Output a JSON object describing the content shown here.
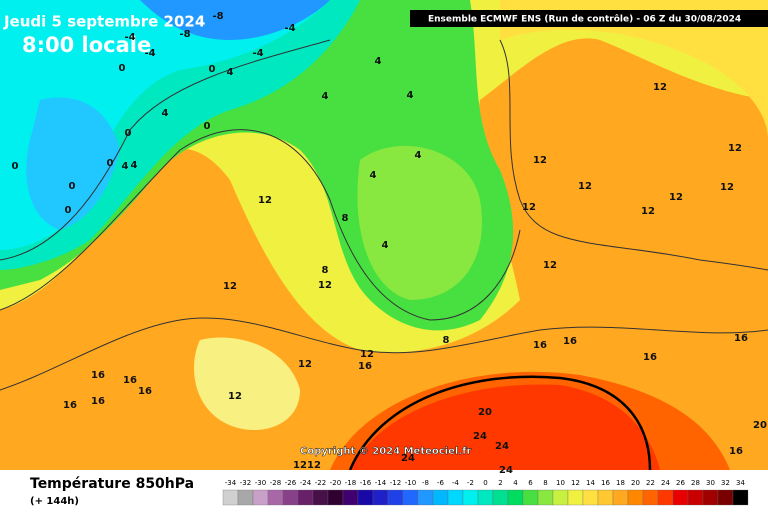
{
  "header": {
    "date": "Jeudi 5 septembre 2024",
    "time": "8:00 locale",
    "run": "Ensemble ECMWF ENS  (Run de contrôle)  -  06 Z du 30/08/2024"
  },
  "map": {
    "contour_labels": [
      -8,
      -8,
      -4,
      -4,
      -4,
      -4,
      0,
      0,
      4,
      4,
      4,
      4,
      4,
      0,
      0,
      0,
      0,
      4,
      4,
      0,
      0,
      12,
      8,
      4,
      4,
      4,
      8,
      12,
      12,
      12,
      16,
      12,
      8,
      12,
      16,
      16,
      16,
      16,
      16,
      16,
      16,
      16,
      16,
      20,
      24,
      24,
      24,
      24,
      12,
      12,
      12,
      12,
      12,
      12,
      12,
      12,
      12,
      12,
      12,
      16,
      20
    ],
    "copyright": "Copyright © 2024 Meteociel.fr"
  },
  "footer": {
    "title": "Température 850hPa",
    "lead": "(+ 144h)"
  },
  "legend": {
    "labels": [
      -34,
      -32,
      -30,
      -28,
      -26,
      -24,
      -22,
      -20,
      -18,
      -16,
      -14,
      -12,
      -10,
      -8,
      -6,
      -4,
      -2,
      0,
      2,
      4,
      6,
      8,
      10,
      12,
      14,
      16,
      18,
      20,
      22,
      24,
      26,
      28,
      30,
      32,
      34
    ],
    "colors": [
      "#d0d0d0",
      "#a8a8a8",
      "#c8a0c8",
      "#a868a8",
      "#884088",
      "#682068",
      "#481048",
      "#300030",
      "#400070",
      "#1808a8",
      "#2020c8",
      "#2040e8",
      "#2068ff",
      "#2098ff",
      "#00b8ff",
      "#00d8ff",
      "#00f0f0",
      "#00e8c0",
      "#00e090",
      "#00dc60",
      "#48e040",
      "#88e840",
      "#c8f040",
      "#f0f040",
      "#ffe040",
      "#ffc830",
      "#ffa820",
      "#ff8800",
      "#ff6400",
      "#ff3800",
      "#e80000",
      "#c80000",
      "#a00000",
      "#780000",
      "#000000"
    ]
  }
}
